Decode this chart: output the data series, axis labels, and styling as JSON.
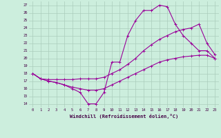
{
  "xlabel": "Windchill (Refroidissement éolien,°C)",
  "bg_color": "#cceedd",
  "grid_color": "#aaccbb",
  "line_color": "#990099",
  "xlim": [
    -0.5,
    23.5
  ],
  "ylim": [
    13.5,
    27.5
  ],
  "xticks": [
    0,
    1,
    2,
    3,
    4,
    5,
    6,
    7,
    8,
    9,
    10,
    11,
    12,
    13,
    14,
    15,
    16,
    17,
    18,
    19,
    20,
    21,
    22,
    23
  ],
  "yticks": [
    14,
    15,
    16,
    17,
    18,
    19,
    20,
    21,
    22,
    23,
    24,
    25,
    26,
    27
  ],
  "curve1_x": [
    0,
    1,
    2,
    3,
    4,
    5,
    6,
    7,
    8,
    9,
    10,
    11,
    12,
    13,
    14,
    15,
    16,
    17,
    18,
    19,
    20,
    21,
    22,
    23
  ],
  "curve1_y": [
    18,
    17.3,
    17.0,
    16.8,
    16.5,
    16.0,
    15.5,
    14.0,
    14.0,
    15.5,
    19.5,
    19.5,
    23.0,
    25.0,
    26.3,
    26.3,
    27.0,
    26.8,
    24.5,
    23.0,
    22.0,
    21.0,
    21.0,
    20.0
  ],
  "curve2_x": [
    0,
    1,
    2,
    3,
    4,
    5,
    6,
    7,
    8,
    9,
    10,
    11,
    12,
    13,
    14,
    15,
    16,
    17,
    18,
    19,
    20,
    21,
    22,
    23
  ],
  "curve2_y": [
    18,
    17.3,
    17.2,
    17.2,
    17.2,
    17.2,
    17.3,
    17.3,
    17.3,
    17.5,
    18.0,
    18.5,
    19.2,
    20.0,
    21.0,
    21.8,
    22.5,
    23.0,
    23.5,
    23.8,
    24.0,
    24.5,
    22.0,
    20.5
  ],
  "curve3_x": [
    0,
    1,
    2,
    3,
    4,
    5,
    6,
    7,
    8,
    9,
    10,
    11,
    12,
    13,
    14,
    15,
    16,
    17,
    18,
    19,
    20,
    21,
    22,
    23
  ],
  "curve3_y": [
    18,
    17.3,
    17.0,
    16.8,
    16.5,
    16.2,
    16.0,
    15.8,
    15.8,
    16.0,
    16.5,
    17.0,
    17.5,
    18.0,
    18.5,
    19.0,
    19.5,
    19.8,
    20.0,
    20.2,
    20.3,
    20.4,
    20.4,
    20.0
  ]
}
